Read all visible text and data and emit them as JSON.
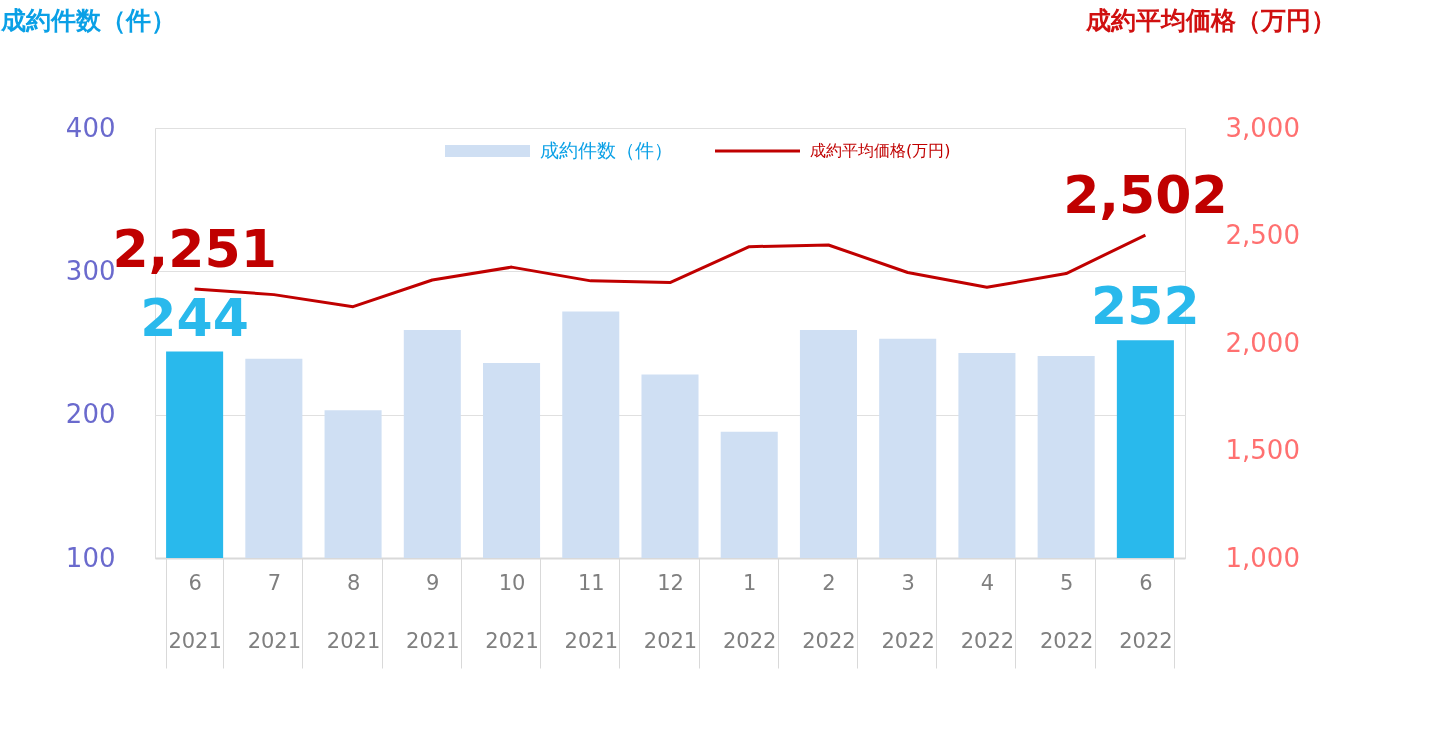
{
  "chart_data": {
    "type": "bar",
    "ylabel": "成約件数（件）",
    "y2label": "成約平均価格（万円）",
    "categories": [
      "6\n2021",
      "7\n2021",
      "8\n2021",
      "9\n2021",
      "10\n2021",
      "11\n2021",
      "12\n2021",
      "1\n2022",
      "2\n2022",
      "3\n2022",
      "4\n2022",
      "5\n2022",
      "6\n2022"
    ],
    "series": [
      {
        "name": "成約件数（件）",
        "type": "bar",
        "color": "#cfdff3",
        "colors": [
          "#29b9ec",
          "#cfdff3",
          "#cfdff3",
          "#cfdff3",
          "#cfdff3",
          "#cfdff3",
          "#cfdff3",
          "#cfdff3",
          "#cfdff3",
          "#cfdff3",
          "#cfdff3",
          "#cfdff3",
          "#29b9ec"
        ],
        "values": [
          244,
          239,
          203,
          259,
          236,
          272,
          228,
          188,
          259,
          253,
          243,
          241,
          252
        ],
        "value_labels": [
          "244",
          null,
          null,
          null,
          null,
          null,
          null,
          null,
          null,
          null,
          null,
          null,
          "252"
        ]
      },
      {
        "name": "成約平均価格(万円)",
        "type": "line",
        "axis": "y2",
        "color": "#c00000",
        "values": [
          2251,
          2225,
          2169,
          2293,
          2353,
          2289,
          2281,
          2448,
          2456,
          2328,
          2259,
          2323,
          2502
        ],
        "value_labels": [
          "2,251",
          null,
          null,
          null,
          null,
          null,
          null,
          null,
          null,
          null,
          null,
          null,
          "2,502"
        ]
      }
    ],
    "ylim": [
      100,
      400
    ],
    "yticks": [
      100,
      200,
      300,
      400
    ],
    "y2lim": [
      1000,
      3000
    ],
    "y2ticks": [
      {
        "value": 1000,
        "label": "1,000"
      },
      {
        "value": 1500,
        "label": "1,500"
      },
      {
        "value": 2000,
        "label": "2,000"
      },
      {
        "value": 2500,
        "label": "2,500"
      },
      {
        "value": 3000,
        "label": "3,000"
      }
    ],
    "grid": "y",
    "legend": "top"
  }
}
